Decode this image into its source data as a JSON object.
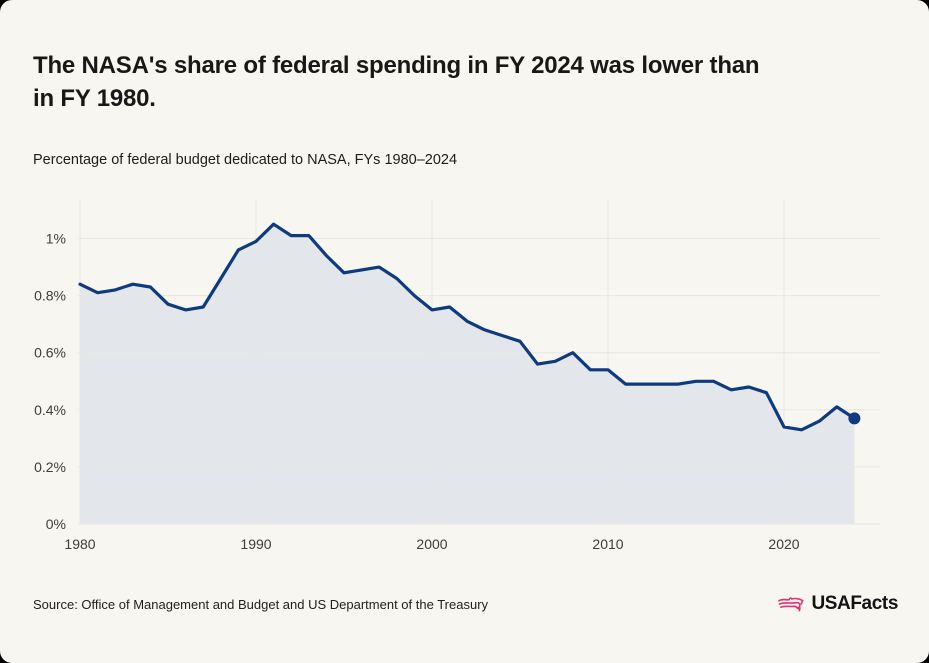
{
  "card": {
    "title_lines": [
      "The NASA's share of federal spending in FY 2024 was lower than",
      "in FY 1980."
    ],
    "subtitle": "Percentage of federal budget dedicated to NASA, FYs 1980–2024",
    "source": "Source: Office of Management and Budget and US Department of the Treasury",
    "logo_text": "USAFacts"
  },
  "colors": {
    "background": "#f7f6f1",
    "line": "#0f3a7e",
    "area_fill": "#e3e6ea",
    "gridline": "#e9e8e2",
    "axis_label": "#3e3d38",
    "logo_pink": "#eb2f6f"
  },
  "chart_data": {
    "type": "area",
    "title": "Percentage of federal budget dedicated to NASA, FYs 1980–2024",
    "xlabel": "",
    "ylabel": "",
    "grid": true,
    "legend": "none",
    "xlim": [
      1980,
      2025.5
    ],
    "ylim": [
      0,
      1.13
    ],
    "x": [
      1980,
      1981,
      1982,
      1983,
      1984,
      1985,
      1986,
      1987,
      1988,
      1989,
      1990,
      1991,
      1992,
      1993,
      1994,
      1995,
      1996,
      1997,
      1998,
      1999,
      2000,
      2001,
      2002,
      2003,
      2004,
      2005,
      2006,
      2007,
      2008,
      2009,
      2010,
      2011,
      2012,
      2013,
      2014,
      2015,
      2016,
      2017,
      2018,
      2019,
      2020,
      2021,
      2022,
      2023,
      2024
    ],
    "series": [
      {
        "name": "NASA share of federal budget (%)",
        "values": [
          0.84,
          0.81,
          0.82,
          0.84,
          0.83,
          0.77,
          0.75,
          0.76,
          0.86,
          0.96,
          0.99,
          1.05,
          1.01,
          1.01,
          0.94,
          0.88,
          0.89,
          0.9,
          0.86,
          0.8,
          0.75,
          0.76,
          0.71,
          0.68,
          0.66,
          0.64,
          0.56,
          0.57,
          0.6,
          0.54,
          0.54,
          0.49,
          0.49,
          0.49,
          0.49,
          0.5,
          0.5,
          0.47,
          0.48,
          0.46,
          0.34,
          0.33,
          0.36,
          0.41,
          0.37
        ]
      }
    ],
    "x_ticks": [
      1980,
      1990,
      2000,
      2010,
      2020
    ],
    "y_ticks": [
      {
        "value": 0,
        "label": "0%"
      },
      {
        "value": 0.2,
        "label": "0.2%"
      },
      {
        "value": 0.4,
        "label": "0.4%"
      },
      {
        "value": 0.6,
        "label": "0.6%"
      },
      {
        "value": 0.8,
        "label": "0.8%"
      },
      {
        "value": 1.0,
        "label": "1%"
      }
    ],
    "end_point_marker": {
      "x": 2024,
      "value": 0.37
    }
  }
}
